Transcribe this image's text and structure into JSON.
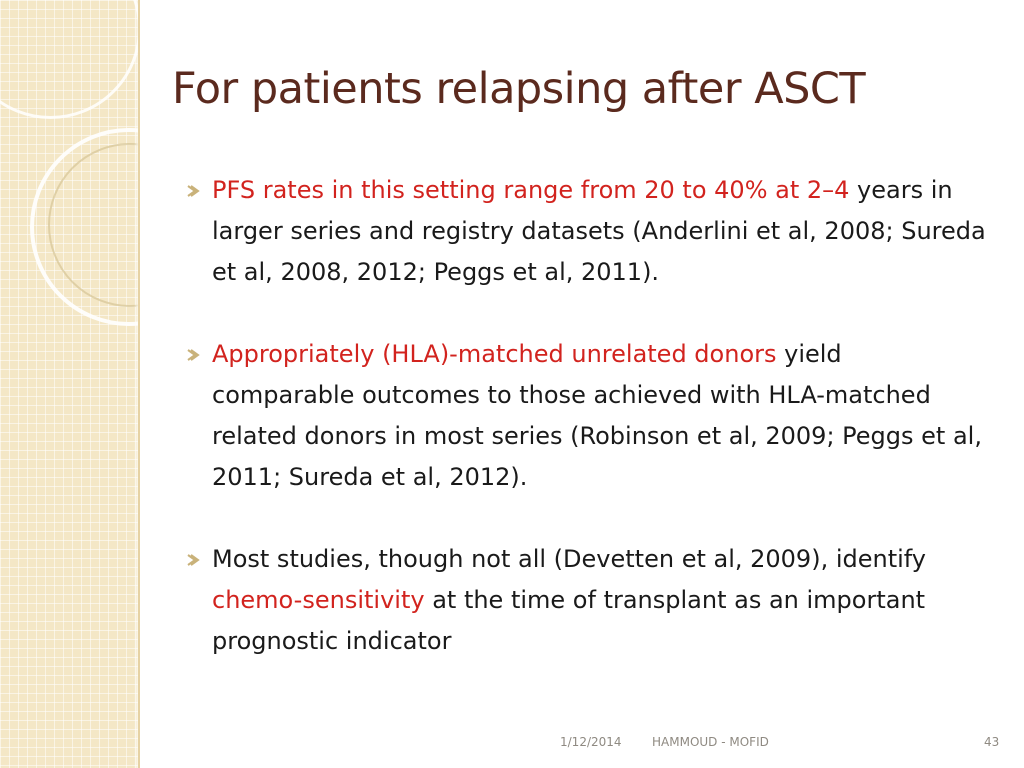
{
  "slide": {
    "title": "For patients relapsing after ASCT",
    "bullets": [
      {
        "highlight": "PFS rates in this setting range from 20 to 40% at 2–4",
        "text": " years in larger series and registry datasets (Anderlini et al, 2008; Sureda et al, 2008, 2012; Peggs et al, 2011)."
      },
      {
        "highlight": "Appropriately (HLA)-matched unrelated donors",
        "text": " yield comparable outcomes to those achieved with HLA-matched related donors in most series (Robinson et al, 2009; Peggs et al, 2011; Sureda et al, 2012)."
      },
      {
        "before": "Most studies, though not all (Devetten et al, 2009), identify ",
        "highlight": "chemo-sensitivity",
        "after": " at the time of transplant as an important prognostic indicator"
      }
    ],
    "bullet_icon": "arrow-bullet-icon",
    "highlight_color": "#d2231e",
    "title_color": "#5b2a1e"
  },
  "footer": {
    "date": "1/12/2014",
    "author": "HAMMOUD -  MOFID",
    "page": "43"
  }
}
